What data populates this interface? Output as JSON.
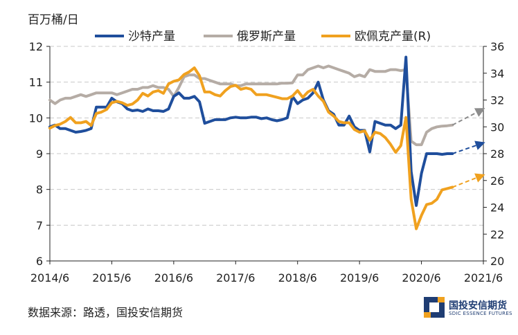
{
  "chart_data": {
    "type": "line",
    "unit_label": "百万桶/日",
    "source": "数据来源：路透，国投安信期货",
    "brand": {
      "name": "国投安信期货",
      "sub": "SDIC ESSENCE FUTURES"
    },
    "x_tick_labels": [
      "2014/6",
      "2015/6",
      "2016/6",
      "2017/6",
      "2018/6",
      "2019/6",
      "2020/6",
      "2021/6"
    ],
    "x_range": [
      "2014/6",
      "2021/6"
    ],
    "y_left": {
      "min": 6,
      "max": 12,
      "ticks": [
        6,
        7,
        8,
        9,
        10,
        11,
        12
      ]
    },
    "y_right": {
      "min": 20,
      "max": 36,
      "ticks": [
        20,
        22,
        24,
        26,
        28,
        30,
        32,
        34,
        36
      ]
    },
    "grid": "horizontal-dashed",
    "legend_position": "top",
    "series": [
      {
        "name": "沙特产量",
        "axis": "left",
        "color": "#1f4e9c",
        "x": [
          "2014/6",
          "2014/7",
          "2014/8",
          "2014/9",
          "2014/10",
          "2014/11",
          "2014/12",
          "2015/1",
          "2015/2",
          "2015/3",
          "2015/4",
          "2015/5",
          "2015/6",
          "2015/7",
          "2015/8",
          "2015/9",
          "2015/10",
          "2015/11",
          "2015/12",
          "2016/1",
          "2016/2",
          "2016/3",
          "2016/4",
          "2016/5",
          "2016/6",
          "2016/7",
          "2016/8",
          "2016/9",
          "2016/10",
          "2016/11",
          "2016/12",
          "2017/1",
          "2017/2",
          "2017/3",
          "2017/4",
          "2017/5",
          "2017/6",
          "2017/7",
          "2017/8",
          "2017/9",
          "2017/10",
          "2017/11",
          "2017/12",
          "2018/1",
          "2018/2",
          "2018/3",
          "2018/4",
          "2018/5",
          "2018/6",
          "2018/7",
          "2018/8",
          "2018/9",
          "2018/10",
          "2018/11",
          "2018/12",
          "2019/1",
          "2019/2",
          "2019/3",
          "2019/4",
          "2019/5",
          "2019/6",
          "2019/7",
          "2019/8",
          "2019/9",
          "2019/10",
          "2019/11",
          "2019/12",
          "2020/1",
          "2020/2",
          "2020/3",
          "2020/4",
          "2020/5",
          "2020/6",
          "2020/7",
          "2020/8",
          "2020/9",
          "2020/10",
          "2020/11",
          "2020/12"
        ],
        "values": [
          9.75,
          9.8,
          9.7,
          9.7,
          9.65,
          9.6,
          9.62,
          9.65,
          9.7,
          10.3,
          10.3,
          10.3,
          10.55,
          10.45,
          10.4,
          10.25,
          10.2,
          10.22,
          10.18,
          10.25,
          10.2,
          10.2,
          10.18,
          10.25,
          10.6,
          10.7,
          10.55,
          10.55,
          10.6,
          10.45,
          9.85,
          9.9,
          9.95,
          9.95,
          9.95,
          10.0,
          10.02,
          10.0,
          10.0,
          10.02,
          10.02,
          9.98,
          10.0,
          9.95,
          9.92,
          9.95,
          10.0,
          10.6,
          10.4,
          10.5,
          10.55,
          10.7,
          11.0,
          10.5,
          10.2,
          10.1,
          9.8,
          9.8,
          10.05,
          9.75,
          9.65,
          9.65,
          9.05,
          9.9,
          9.85,
          9.8,
          9.8,
          9.7,
          9.8,
          11.7,
          8.5,
          7.55,
          8.45,
          9.0,
          9.0,
          9.0,
          8.98,
          9.0,
          9.0
        ]
      },
      {
        "name": "俄罗斯产量",
        "axis": "left",
        "color": "#b5aca5",
        "x": [
          "2014/6",
          "2014/7",
          "2014/8",
          "2014/9",
          "2014/10",
          "2014/11",
          "2014/12",
          "2015/1",
          "2015/2",
          "2015/3",
          "2015/4",
          "2015/5",
          "2015/6",
          "2015/7",
          "2015/8",
          "2015/9",
          "2015/10",
          "2015/11",
          "2015/12",
          "2016/1",
          "2016/2",
          "2016/3",
          "2016/4",
          "2016/5",
          "2016/6",
          "2016/7",
          "2016/8",
          "2016/9",
          "2016/10",
          "2016/11",
          "2016/12",
          "2017/1",
          "2017/2",
          "2017/3",
          "2017/4",
          "2017/5",
          "2017/6",
          "2017/7",
          "2017/8",
          "2017/9",
          "2017/10",
          "2017/11",
          "2017/12",
          "2018/1",
          "2018/2",
          "2018/3",
          "2018/4",
          "2018/5",
          "2018/6",
          "2018/7",
          "2018/8",
          "2018/9",
          "2018/10",
          "2018/11",
          "2018/12",
          "2019/1",
          "2019/2",
          "2019/3",
          "2019/4",
          "2019/5",
          "2019/6",
          "2019/7",
          "2019/8",
          "2019/9",
          "2019/10",
          "2019/11",
          "2019/12",
          "2020/1",
          "2020/2",
          "2020/3",
          "2020/4",
          "2020/5",
          "2020/6",
          "2020/7",
          "2020/8",
          "2020/9",
          "2020/10",
          "2020/11",
          "2020/12"
        ],
        "values": [
          10.5,
          10.4,
          10.5,
          10.55,
          10.55,
          10.6,
          10.65,
          10.6,
          10.65,
          10.7,
          10.7,
          10.7,
          10.7,
          10.65,
          10.7,
          10.75,
          10.8,
          10.8,
          10.85,
          10.85,
          10.9,
          10.85,
          10.85,
          10.8,
          10.6,
          10.85,
          11.15,
          11.2,
          11.2,
          11.1,
          11.1,
          11.05,
          11.0,
          10.95,
          10.95,
          10.95,
          10.9,
          10.9,
          10.95,
          10.95,
          10.95,
          10.95,
          10.95,
          10.95,
          10.95,
          10.97,
          10.97,
          10.98,
          11.2,
          11.2,
          11.35,
          11.4,
          11.45,
          11.4,
          11.45,
          11.4,
          11.35,
          11.3,
          11.25,
          11.15,
          11.2,
          11.15,
          11.35,
          11.3,
          11.3,
          11.3,
          11.35,
          11.35,
          11.32,
          11.35,
          9.35,
          9.25,
          9.25,
          9.6,
          9.7,
          9.75,
          9.77,
          9.78,
          9.8
        ]
      },
      {
        "name": "欧佩克产量(R)",
        "axis": "right",
        "color": "#f0a11f",
        "x": [
          "2014/6",
          "2014/7",
          "2014/8",
          "2014/9",
          "2014/10",
          "2014/11",
          "2014/12",
          "2015/1",
          "2015/2",
          "2015/3",
          "2015/4",
          "2015/5",
          "2015/6",
          "2015/7",
          "2015/8",
          "2015/9",
          "2015/10",
          "2015/11",
          "2015/12",
          "2016/1",
          "2016/2",
          "2016/3",
          "2016/4",
          "2016/5",
          "2016/6",
          "2016/7",
          "2016/8",
          "2016/9",
          "2016/10",
          "2016/11",
          "2016/12",
          "2017/1",
          "2017/2",
          "2017/3",
          "2017/4",
          "2017/5",
          "2017/6",
          "2017/7",
          "2017/8",
          "2017/9",
          "2017/10",
          "2017/11",
          "2017/12",
          "2018/1",
          "2018/2",
          "2018/3",
          "2018/4",
          "2018/5",
          "2018/6",
          "2018/7",
          "2018/8",
          "2018/9",
          "2018/10",
          "2018/11",
          "2018/12",
          "2019/1",
          "2019/2",
          "2019/3",
          "2019/4",
          "2019/5",
          "2019/6",
          "2019/7",
          "2019/8",
          "2019/9",
          "2019/10",
          "2019/11",
          "2019/12",
          "2020/1",
          "2020/2",
          "2020/3",
          "2020/4",
          "2020/5",
          "2020/6",
          "2020/7",
          "2020/8",
          "2020/9",
          "2020/10",
          "2020/11",
          "2020/12"
        ],
        "values": [
          29.9,
          30.1,
          30.2,
          30.4,
          30.7,
          30.3,
          30.3,
          30.4,
          30.1,
          31.0,
          31.1,
          31.3,
          31.8,
          31.9,
          31.8,
          31.6,
          31.7,
          32.0,
          32.5,
          32.3,
          32.6,
          32.7,
          32.5,
          33.2,
          33.4,
          33.5,
          33.9,
          34.1,
          34.4,
          33.8,
          32.6,
          32.6,
          32.4,
          32.3,
          32.7,
          33.0,
          33.1,
          32.8,
          32.9,
          32.8,
          32.4,
          32.4,
          32.4,
          32.3,
          32.2,
          32.1,
          32.1,
          32.3,
          32.7,
          32.2,
          32.6,
          32.8,
          32.3,
          31.9,
          31.1,
          30.8,
          30.4,
          30.3,
          30.3,
          29.8,
          29.6,
          29.7,
          29.0,
          29.6,
          29.5,
          29.2,
          28.7,
          28.1,
          28.6,
          30.7,
          24.6,
          22.4,
          23.4,
          24.2,
          24.3,
          24.6,
          25.3,
          25.4,
          25.5
        ]
      }
    ],
    "projections": [
      {
        "axis": "left",
        "color": "#8c8c8c",
        "x": [
          "2020/12",
          "2021/6"
        ],
        "values": [
          9.8,
          10.25
        ]
      },
      {
        "axis": "left",
        "color": "#1f4e9c",
        "x": [
          "2020/12",
          "2021/6"
        ],
        "values": [
          9.0,
          9.3
        ]
      },
      {
        "axis": "right",
        "color": "#f0a11f",
        "x": [
          "2020/12",
          "2021/6"
        ],
        "values": [
          25.5,
          26.4
        ]
      }
    ]
  }
}
